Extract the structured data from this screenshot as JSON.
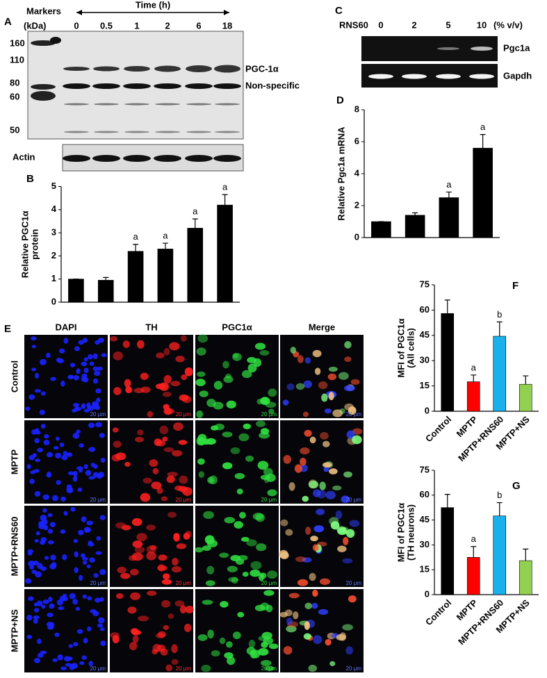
{
  "blot_a": {
    "panel": "A",
    "markers_title": "Markers",
    "markers_unit": "(kDa)",
    "time_label": "Time (h)",
    "time_points": [
      "0",
      "0.5",
      "1",
      "2",
      "6",
      "18"
    ],
    "marker_sizes": [
      "160",
      "110",
      "80",
      "60",
      "50"
    ],
    "band_labels": [
      "PGC-1α",
      "Non-specific"
    ],
    "loading_label": "Actin"
  },
  "gel_c": {
    "panel": "C",
    "treatment_label": "RNS60",
    "doses": [
      "0",
      "2",
      "5",
      "10"
    ],
    "unit": "(% v/v)",
    "bands": [
      "Pgc1a",
      "Gapdh"
    ]
  },
  "micrographs": {
    "panel": "E",
    "channels": [
      "DAPI",
      "TH",
      "PGC1α",
      "Merge"
    ],
    "groups": [
      "Control",
      "MPTP",
      "MPTP+RNS60",
      "MPTP+NS"
    ],
    "scale_bar": "20 μm"
  },
  "chart_data": [
    {
      "type": "bar",
      "panel": "B",
      "ylabel": [
        "Relative PGC1α",
        "protein"
      ],
      "categories": [
        null,
        null,
        null,
        null,
        null,
        null
      ],
      "values": [
        1,
        0.95,
        2.2,
        2.3,
        3.2,
        4.2
      ],
      "errors": [
        0,
        0.12,
        0.3,
        0.25,
        0.4,
        0.45
      ],
      "annotations": [
        null,
        null,
        "a",
        "a",
        "a",
        "a"
      ],
      "colors": [
        "#000000",
        "#000000",
        "#000000",
        "#000000",
        "#000000",
        "#000000"
      ],
      "ylim": [
        0,
        5
      ],
      "yticks": [
        0,
        1,
        2,
        3,
        4,
        5
      ]
    },
    {
      "type": "bar",
      "panel": "D",
      "ylabel": [
        "Relative Pgc1a mRNA"
      ],
      "categories": [
        null,
        null,
        null,
        null
      ],
      "values": [
        1,
        1.4,
        2.5,
        5.6
      ],
      "errors": [
        0,
        0.15,
        0.35,
        0.85
      ],
      "annotations": [
        null,
        null,
        "a",
        "a"
      ],
      "colors": [
        "#000000",
        "#000000",
        "#000000",
        "#000000"
      ],
      "ylim": [
        0,
        8
      ],
      "yticks": [
        0,
        2,
        4,
        6,
        8
      ]
    },
    {
      "type": "bar",
      "panel": "F",
      "ylabel": [
        "MFI of PGC1α",
        "(All cells)"
      ],
      "categories": [
        "Control",
        "MPTP",
        "MPTP+RNS60",
        "MPTP+NS"
      ],
      "values": [
        58,
        17.5,
        44.5,
        16
      ],
      "errors": [
        8,
        4,
        8.5,
        5
      ],
      "annotations": [
        null,
        "a",
        "b",
        null
      ],
      "colors": [
        "#000000",
        "#ff0000",
        "#1ab0ec",
        "#92d050"
      ],
      "ylim": [
        0,
        75
      ],
      "yticks": [
        0,
        15,
        30,
        45,
        60,
        75
      ]
    },
    {
      "type": "bar",
      "panel": "G",
      "ylabel": [
        "MFI of PGC1α",
        "(TH neurons)"
      ],
      "categories": [
        "Control",
        "MPTP",
        "MPTP+RNS60",
        "MPTP+NS"
      ],
      "values": [
        52.5,
        22.5,
        47.5,
        20.5
      ],
      "errors": [
        8,
        6.5,
        8,
        7
      ],
      "annotations": [
        null,
        "a",
        "b",
        null
      ],
      "colors": [
        "#000000",
        "#ff0000",
        "#1ab0ec",
        "#92d050"
      ],
      "ylim": [
        0,
        75
      ],
      "yticks": [
        0,
        15,
        30,
        45,
        60,
        75
      ]
    }
  ]
}
